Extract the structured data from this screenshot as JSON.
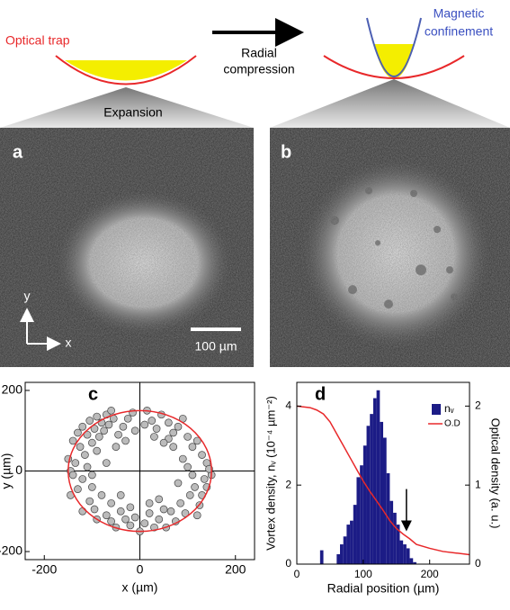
{
  "schematic": {
    "left_label": "Optical trap",
    "arrow_label": [
      "Radial",
      "compression"
    ],
    "right_label": [
      "Magnetic",
      "confinement"
    ],
    "expansion": "Expansion"
  },
  "images": {
    "panel_a": "a",
    "panel_b": "b",
    "axis_y": "y",
    "axis_x": "x",
    "scale": "100 µm"
  },
  "chart_data": [
    {
      "type": "scatter",
      "label": "c",
      "xlabel": "x (µm)",
      "ylabel": "y (µm)",
      "color": "#bbbbbb",
      "ring_color": "#e8282a",
      "ring_radius": 150,
      "x": [
        -120,
        -105,
        -90,
        -130,
        -140,
        -110,
        -95,
        -80,
        -70,
        -60,
        -125,
        -100,
        -85,
        -115,
        -135,
        -145,
        -75,
        -65,
        -55,
        -90,
        -110,
        -120,
        -100,
        -80,
        -130,
        -140,
        -105,
        -95,
        -70,
        -60,
        -50,
        -40,
        -30,
        -20,
        -10,
        10,
        20,
        30,
        40,
        50,
        -45,
        -35,
        -25,
        -15,
        15,
        25,
        35,
        45,
        60,
        70,
        80,
        90,
        100,
        110,
        120,
        130,
        140,
        150,
        65,
        75,
        85,
        95,
        105,
        115,
        125,
        135,
        145,
        55,
        70,
        90,
        110,
        130,
        60,
        80,
        100,
        120,
        140,
        -50,
        -30,
        -10,
        10,
        30,
        50,
        -60,
        -40,
        -20,
        0,
        20,
        40,
        -120,
        -90,
        -150,
        -100,
        -70,
        -145
      ],
      "y": [
        110,
        125,
        135,
        95,
        75,
        90,
        105,
        120,
        140,
        150,
        60,
        70,
        85,
        40,
        20,
        0,
        100,
        115,
        130,
        50,
        10,
        -20,
        -40,
        -60,
        -45,
        -10,
        -75,
        -95,
        -110,
        -125,
        -140,
        -100,
        -120,
        -135,
        -115,
        -130,
        -105,
        -140,
        -120,
        -95,
        90,
        110,
        130,
        145,
        150,
        125,
        105,
        140,
        120,
        95,
        110,
        130,
        85,
        60,
        75,
        40,
        20,
        -10,
        -100,
        -125,
        -80,
        -105,
        -60,
        -40,
        -85,
        -20,
        5,
        -140,
        60,
        30,
        -10,
        -60,
        80,
        -30,
        10,
        -110,
        -40,
        60,
        75,
        100,
        115,
        85,
        70,
        -80,
        -60,
        -90,
        -150,
        -80,
        -70,
        -100,
        -120,
        30,
        -10,
        20,
        -60
      ],
      "xlim": [
        -240,
        240
      ],
      "ylim": [
        -220,
        220
      ],
      "xticks": [
        -200,
        0,
        200
      ],
      "yticks": [
        -200,
        0,
        200
      ]
    },
    {
      "type": "histogram",
      "label": "d",
      "xlabel": "Radial position (µm)",
      "ylabel": "Vortex density, nᵥ (10⁻⁴ µm⁻²)",
      "y2label": "Optical density (a. u.)",
      "bins": [
        35,
        40,
        45,
        50,
        55,
        60,
        65,
        70,
        75,
        80,
        85,
        90,
        95,
        100,
        105,
        110,
        115,
        120,
        125,
        130,
        135,
        140,
        145,
        150,
        155,
        160,
        165,
        170,
        175,
        180
      ],
      "series": [
        {
          "name": "nᵥ",
          "color": "#1c1c86",
          "values": [
            0.35,
            0,
            0,
            0,
            0,
            0.25,
            0.5,
            0.7,
            1.0,
            1.1,
            1.5,
            2.2,
            2.5,
            3.0,
            3.5,
            3.8,
            4.2,
            4.4,
            3.6,
            3.2,
            2.3,
            1.6,
            1.3,
            1.0,
            0.6,
            0.5,
            0.4,
            0.15,
            0.05
          ]
        },
        {
          "name": "O.D",
          "color": "#e8282a",
          "axis": "y2",
          "x": [
            0,
            20,
            30,
            40,
            50,
            60,
            70,
            80,
            90,
            100,
            110,
            120,
            130,
            140,
            150,
            160,
            170,
            180,
            200,
            220,
            240,
            260
          ],
          "values": [
            2.0,
            1.98,
            1.95,
            1.9,
            1.8,
            1.65,
            1.5,
            1.35,
            1.2,
            1.05,
            0.92,
            0.8,
            0.68,
            0.55,
            0.45,
            0.38,
            0.32,
            0.25,
            0.2,
            0.16,
            0.14,
            0.12
          ]
        }
      ],
      "xlim": [
        0,
        260
      ],
      "ylim": [
        0,
        4.6
      ],
      "y2lim": [
        0,
        2.3
      ],
      "xticks": [
        0,
        100,
        200
      ],
      "yticks": [
        0,
        2,
        4
      ],
      "y2ticks": [
        0,
        1,
        2
      ]
    }
  ]
}
